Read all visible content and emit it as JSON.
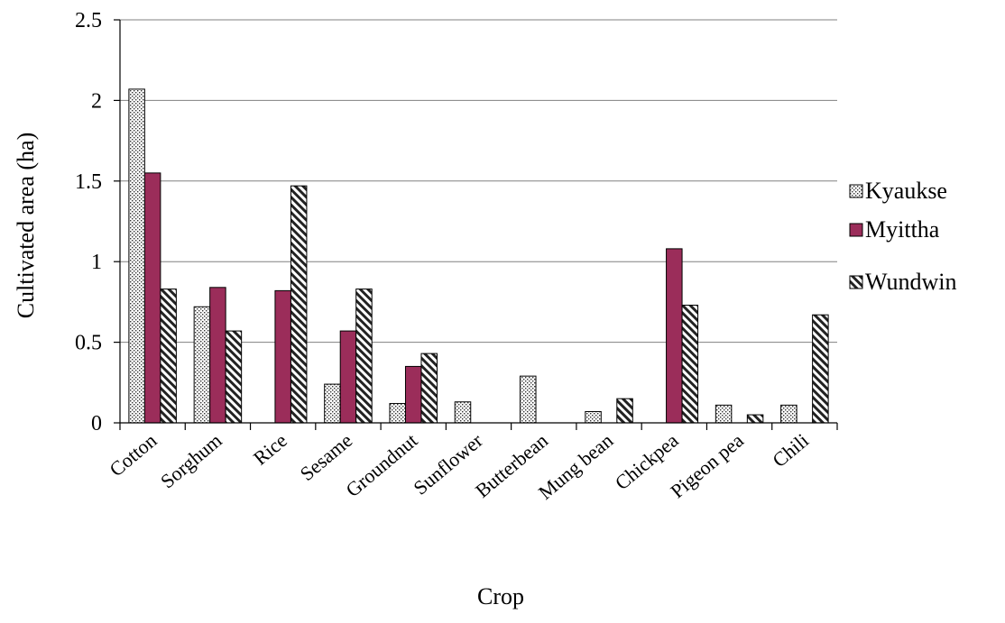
{
  "chart_data": {
    "type": "bar",
    "title": "",
    "xlabel": "Crop",
    "ylabel": "Cultivated area (ha)",
    "ylim": [
      0,
      2.5
    ],
    "yticks": [
      0,
      0.5,
      1,
      1.5,
      2,
      2.5
    ],
    "ytick_labels": [
      "0",
      "0.5",
      "1",
      "1.5",
      "2",
      "2.5"
    ],
    "grid": true,
    "legend_position": "right",
    "categories": [
      "Cotton",
      "Sorghum",
      "Rice",
      "Sesame",
      "Groundnut",
      "Sunflower",
      "Butterbean",
      "Mung bean",
      "Chickpea",
      "Pigeon pea",
      "Chili"
    ],
    "series": [
      {
        "name": "Kyaukse",
        "pattern": "dots",
        "color": "#ffffff",
        "values": [
          2.07,
          0.72,
          0,
          0.24,
          0.12,
          0.13,
          0.29,
          0.07,
          0,
          0.11,
          0.11
        ]
      },
      {
        "name": "Myittha",
        "pattern": "solid",
        "color": "#9b2d5a",
        "values": [
          1.55,
          0.84,
          0.82,
          0.57,
          0.35,
          0,
          0,
          0,
          1.08,
          0,
          0
        ]
      },
      {
        "name": "Wundwin",
        "pattern": "hatch",
        "color": "#ffffff",
        "values": [
          0.83,
          0.57,
          1.47,
          0.83,
          0.43,
          0,
          0,
          0.15,
          0.73,
          0.05,
          0.67
        ]
      }
    ]
  }
}
